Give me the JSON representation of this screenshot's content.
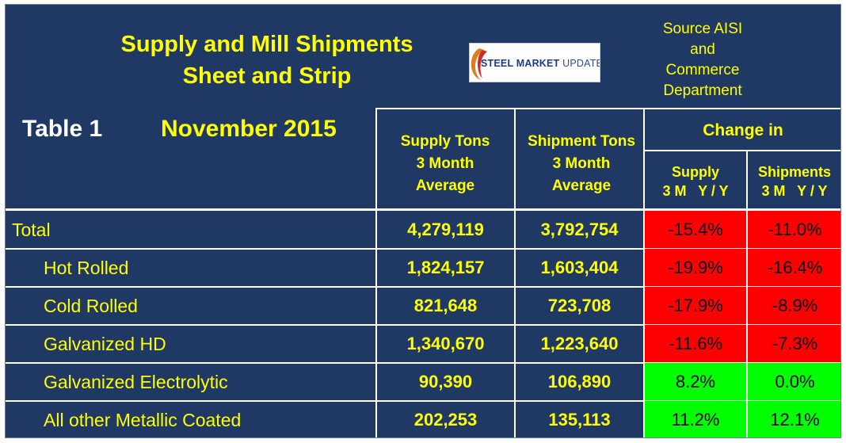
{
  "header": {
    "title_line1": "Supply and Mill Shipments",
    "title_line2": "Sheet and Strip",
    "logo_text_bold": "STEEL MARKET",
    "logo_text_light": "UPDATE",
    "source": [
      "Source AISI",
      "and",
      "Commerce",
      "Department"
    ],
    "table_label": "Table 1",
    "period": "November 2015"
  },
  "columns": {
    "supply": [
      "Supply Tons",
      "3 Month",
      "Average"
    ],
    "shipments": [
      "Shipment Tons",
      "3 Month",
      "Average"
    ],
    "change_in": "Change in",
    "change_supply": [
      "Supply",
      "3 M   Y / Y"
    ],
    "change_shipments": [
      "Shipments",
      "3 M   Y / Y"
    ]
  },
  "rows": [
    {
      "label": "Total",
      "supply": "4,279,119",
      "shipments": "3,792,754",
      "supply_change": "-15.4%",
      "ship_change": "-11.0%"
    },
    {
      "label": "Hot Rolled",
      "supply": "1,824,157",
      "shipments": "1,603,404",
      "supply_change": "-19.9%",
      "ship_change": "-16.4%"
    },
    {
      "label": "Cold Rolled",
      "supply": "821,648",
      "shipments": "723,708",
      "supply_change": "-17.9%",
      "ship_change": "-8.9%"
    },
    {
      "label": "Galvanized HD",
      "supply": "1,340,670",
      "shipments": "1,223,640",
      "supply_change": "-11.6%",
      "ship_change": "-7.3%"
    },
    {
      "label": "Galvanized Electrolytic",
      "supply": "90,390",
      "shipments": "106,890",
      "supply_change": "8.2%",
      "ship_change": "0.0%"
    },
    {
      "label": "All other Metallic Coated",
      "supply": "202,253",
      "shipments": "135,113",
      "supply_change": "11.2%",
      "ship_change": "12.1%"
    }
  ],
  "colors": {
    "background": "#1f3864",
    "text": "#ffff00",
    "negative": "#ff0000",
    "positive": "#00ff00"
  }
}
